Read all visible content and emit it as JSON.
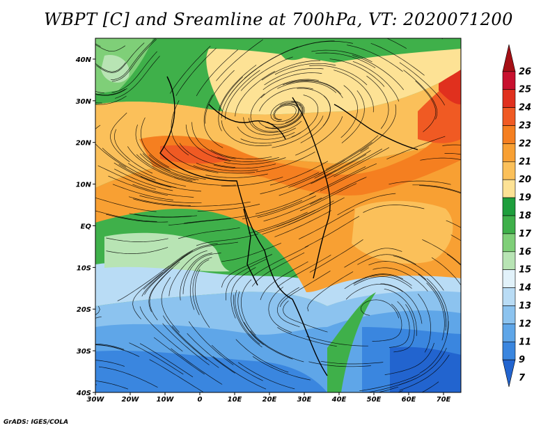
{
  "title": "WBPT [C] and Sreamline at 700hPa, VT: 2020071200",
  "credit": "GrADS: IGES/COLA",
  "map": {
    "latitude_labels": [
      "40N",
      "30N",
      "20N",
      "10N",
      "EQ",
      "10S",
      "20S",
      "30S",
      "40S"
    ],
    "longitude_labels": [
      "30W",
      "20W",
      "10W",
      "0",
      "10E",
      "20E",
      "30E",
      "40E",
      "50E",
      "60E",
      "70E"
    ],
    "lon_range": [
      -30,
      75
    ],
    "lat_range": [
      -40,
      45
    ],
    "field": "WBPT",
    "overlay": "streamlines"
  },
  "colorbar": {
    "labels": [
      "26",
      "25",
      "24",
      "23",
      "22",
      "21",
      "20",
      "19",
      "18",
      "17",
      "16",
      "15",
      "14",
      "13",
      "12",
      "11",
      "9",
      "7"
    ],
    "colors": [
      "#a50f15",
      "#c8102e",
      "#e0301e",
      "#f05a23",
      "#f57f20",
      "#f8a033",
      "#fbc05a",
      "#fde295",
      "#1e9e3c",
      "#3fb04a",
      "#7fcf78",
      "#b8e4b4",
      "#e2f2fa",
      "#b9dcf5",
      "#8cc3ef",
      "#5fa6e8",
      "#3a86df",
      "#2264cf"
    ]
  }
}
